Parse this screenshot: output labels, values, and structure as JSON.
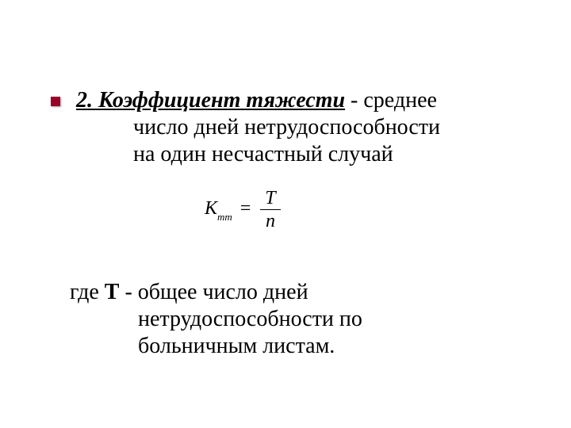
{
  "heading": {
    "number": "2.",
    "term": "Коэффициент тяжести",
    "rest1": " - среднее",
    "line2": "число дней нетрудоспособности",
    "line3": "на один несчастный случай"
  },
  "formula": {
    "lhs_variable": "К",
    "lhs_subscript": "mm",
    "numerator": "Т",
    "denominator": "n"
  },
  "description": {
    "prefix": "где ",
    "symbol": "Т",
    "rest1": " - общее число дней",
    "line2": "нетрудоспособности по",
    "line3": "больничным листам."
  },
  "style": {
    "bullet_color": "#9a0028",
    "background": "#ffffff",
    "text_color": "#000000",
    "font_family": "Times New Roman",
    "base_fontsize_pt": 21,
    "formula_fontsize_pt": 18
  }
}
